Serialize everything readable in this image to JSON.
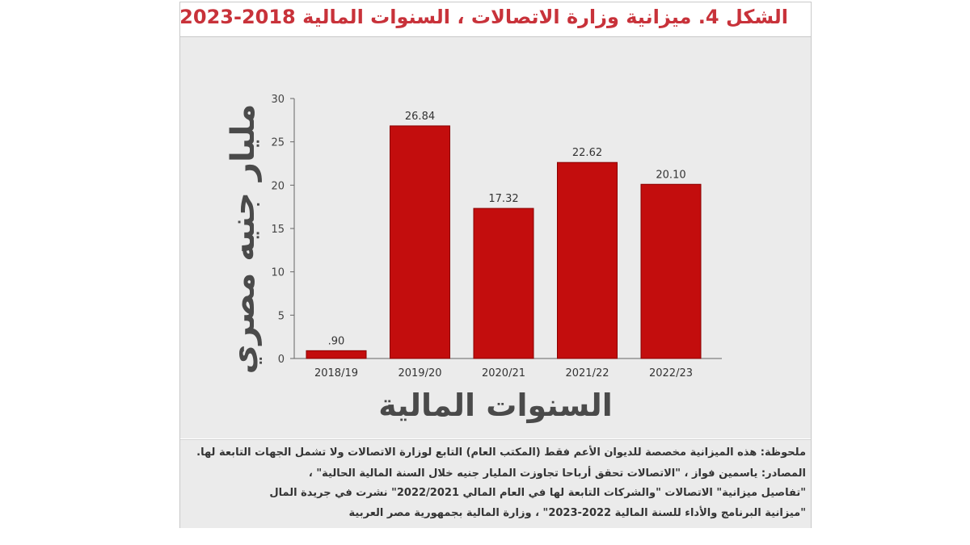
{
  "chart_data": {
    "type": "bar",
    "title": "الشكل 4. ميزانية وزارة الاتصالات ، السنوات المالية 2018-2023",
    "categories": [
      "2018/19",
      "2019/20",
      "2020/21",
      "2021/22",
      "2022/23"
    ],
    "values": [
      0.9,
      26.84,
      17.32,
      22.62,
      20.1
    ],
    "value_labels": [
      ".90",
      "26.84",
      "17.32",
      "22.62",
      "20.10"
    ],
    "ylabel": "مليار جنيه مصري",
    "xlabel": "السنوات المالية",
    "ylim": [
      0,
      30
    ],
    "yticks": [
      "0",
      "5",
      "10",
      "15",
      "20",
      "25",
      "30"
    ],
    "bar_color": "#c30d0d",
    "grid": false,
    "legend": "none"
  },
  "notes": [
    "ملحوظة: هذه الميزانية مخصصة للديوان الأعم فقط (المكتب العام) التابع لوزارة الاتصالات ولا تشمل الجهات التابعة لها.",
    "المصادر: ياسمين فواز ، \"الاتصالات تحقق أرباحا تجاوزت المليار جنيه خلال السنة المالية الحالية\" ،",
    "\"تفاصيل ميزانية\" الاتصالات \"والشركات التابعة لها في العام المالي 2022/2021\" نشرت في جريدة المال",
    "\"ميزانية البرنامج والأداء للسنة المالية 2022-2023\" ، وزارة المالية بجمهورية مصر العربية"
  ],
  "colors": {
    "title": "#c8323a",
    "panel_background": "#ebebeb",
    "bar": "#c30d0d"
  }
}
